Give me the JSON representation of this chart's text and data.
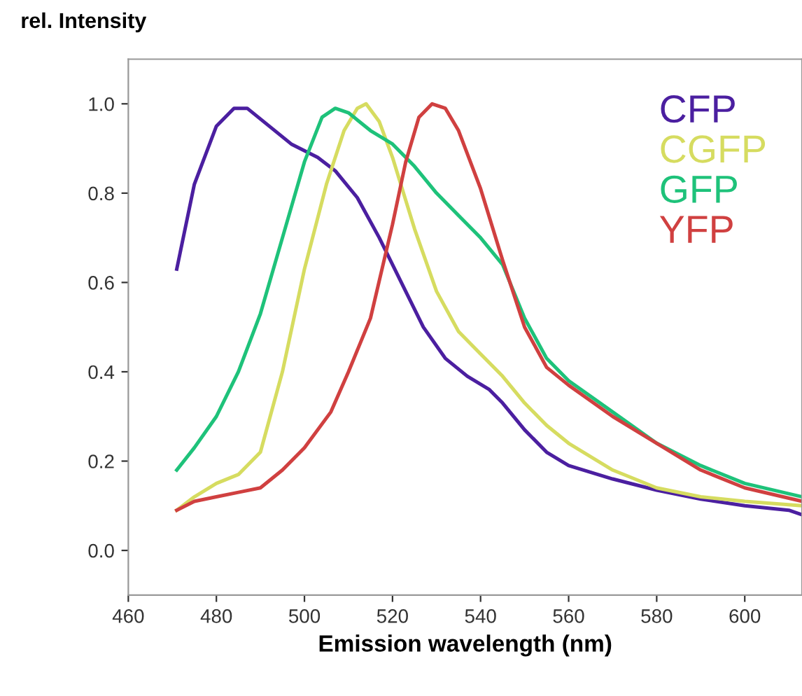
{
  "chart_data": {
    "type": "line",
    "ylabel": "rel. Intensity",
    "xlabel": "Emission wavelength (nm)",
    "xlim": [
      460,
      613
    ],
    "ylim": [
      -0.1,
      1.1
    ],
    "xticks": [
      460,
      480,
      500,
      520,
      540,
      560,
      580,
      600
    ],
    "yticks": [
      {
        "value": 0,
        "label": "0.0"
      },
      {
        "value": 0.2,
        "label": "0.2"
      },
      {
        "value": 0.4,
        "label": "0.4"
      },
      {
        "value": 0.6,
        "label": "0.6"
      },
      {
        "value": 0.8,
        "label": "0.8"
      },
      {
        "value": 1,
        "label": "1.0"
      }
    ],
    "grid": false,
    "legend": "top right",
    "marker": "none",
    "line_style": "solid",
    "series": [
      {
        "name": "CFP",
        "color": "#4b1fa0",
        "x": [
          471,
          475,
          480,
          484,
          487,
          492,
          497,
          503,
          507,
          512,
          517,
          522,
          527,
          532,
          537,
          542,
          545,
          550,
          555,
          560,
          570,
          580,
          590,
          600,
          610,
          613
        ],
        "values": [
          0.63,
          0.82,
          0.95,
          0.99,
          0.99,
          0.95,
          0.91,
          0.88,
          0.85,
          0.79,
          0.7,
          0.6,
          0.5,
          0.43,
          0.39,
          0.36,
          0.33,
          0.27,
          0.22,
          0.19,
          0.16,
          0.135,
          0.115,
          0.1,
          0.09,
          0.08
        ]
      },
      {
        "name": "CGFP",
        "color": "#d6dc60",
        "x": [
          471,
          475,
          480,
          485,
          490,
          495,
          500,
          505,
          509,
          512,
          514,
          517,
          520,
          525,
          530,
          535,
          540,
          545,
          550,
          555,
          560,
          570,
          580,
          590,
          600,
          613
        ],
        "values": [
          0.09,
          0.12,
          0.15,
          0.17,
          0.22,
          0.4,
          0.63,
          0.82,
          0.94,
          0.99,
          1.0,
          0.96,
          0.88,
          0.72,
          0.58,
          0.49,
          0.44,
          0.39,
          0.33,
          0.28,
          0.24,
          0.18,
          0.14,
          0.12,
          0.11,
          0.1
        ]
      },
      {
        "name": "GFP",
        "color": "#1ec27a",
        "x": [
          471,
          475,
          480,
          485,
          490,
          495,
          500,
          504,
          507,
          510,
          515,
          520,
          525,
          530,
          535,
          540,
          545,
          550,
          555,
          560,
          570,
          580,
          590,
          600,
          613
        ],
        "values": [
          0.18,
          0.23,
          0.3,
          0.4,
          0.53,
          0.7,
          0.87,
          0.97,
          0.99,
          0.98,
          0.94,
          0.91,
          0.86,
          0.8,
          0.75,
          0.7,
          0.64,
          0.52,
          0.43,
          0.38,
          0.31,
          0.24,
          0.19,
          0.15,
          0.12
        ]
      },
      {
        "name": "YFP",
        "color": "#d04040",
        "x": [
          471,
          475,
          480,
          485,
          490,
          495,
          500,
          506,
          510,
          515,
          520,
          523,
          526,
          529,
          532,
          535,
          540,
          545,
          550,
          555,
          560,
          570,
          580,
          590,
          600,
          613
        ],
        "values": [
          0.09,
          0.11,
          0.12,
          0.13,
          0.14,
          0.18,
          0.23,
          0.31,
          0.4,
          0.52,
          0.73,
          0.87,
          0.97,
          1.0,
          0.99,
          0.94,
          0.81,
          0.65,
          0.5,
          0.41,
          0.37,
          0.3,
          0.24,
          0.18,
          0.14,
          0.11
        ]
      }
    ]
  }
}
